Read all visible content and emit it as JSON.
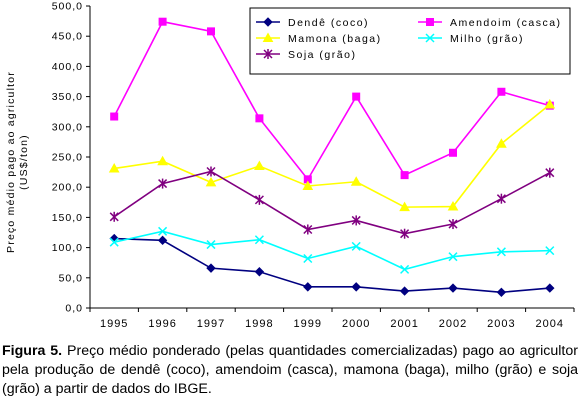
{
  "chart_data": {
    "type": "line",
    "ylabel_line1": "Preço médio pago ao agricultor",
    "ylabel_line2": "(US$/ton)",
    "ylim": [
      0,
      500
    ],
    "ytick_labels": [
      "0,0",
      "50,0",
      "100,0",
      "150,0",
      "200,0",
      "250,0",
      "300,0",
      "350,0",
      "400,0",
      "450,0",
      "500,0"
    ],
    "x": [
      "1995",
      "1996",
      "1997",
      "1998",
      "1999",
      "2000",
      "2001",
      "2002",
      "2003",
      "2004"
    ],
    "grid": false,
    "legend_position": "top-right",
    "series": [
      {
        "name": "Dendê (coco)",
        "color": "#000080",
        "marker": "diamond",
        "values": [
          115,
          112,
          66,
          60,
          35,
          35,
          28,
          33,
          26,
          33
        ]
      },
      {
        "name": "Amendoim (casca)",
        "color": "#ff00ff",
        "marker": "square",
        "values": [
          317,
          474,
          458,
          314,
          213,
          350,
          220,
          257,
          358,
          335
        ]
      },
      {
        "name": "Mamona (baga)",
        "color": "#ffff00",
        "marker": "triangle",
        "values": [
          231,
          243,
          208,
          235,
          202,
          209,
          167,
          168,
          272,
          337
        ]
      },
      {
        "name": "Milho (grão)",
        "color": "#00ffff",
        "marker": "x",
        "values": [
          109,
          127,
          105,
          113,
          82,
          102,
          64,
          85,
          93,
          95
        ]
      },
      {
        "name": "Soja (grão)",
        "color": "#800080",
        "marker": "star",
        "values": [
          151,
          206,
          226,
          179,
          130,
          145,
          123,
          139,
          181,
          224
        ]
      }
    ]
  },
  "caption": {
    "label": "Figura 5.",
    "text": " Preço médio ponderado (pelas quantidades comercializadas) pago ao agricultor pela produção de dendê (coco), amendoim (casca), mamona (baga), milho (grão) e soja (grão) a partir de dados do IBGE."
  }
}
